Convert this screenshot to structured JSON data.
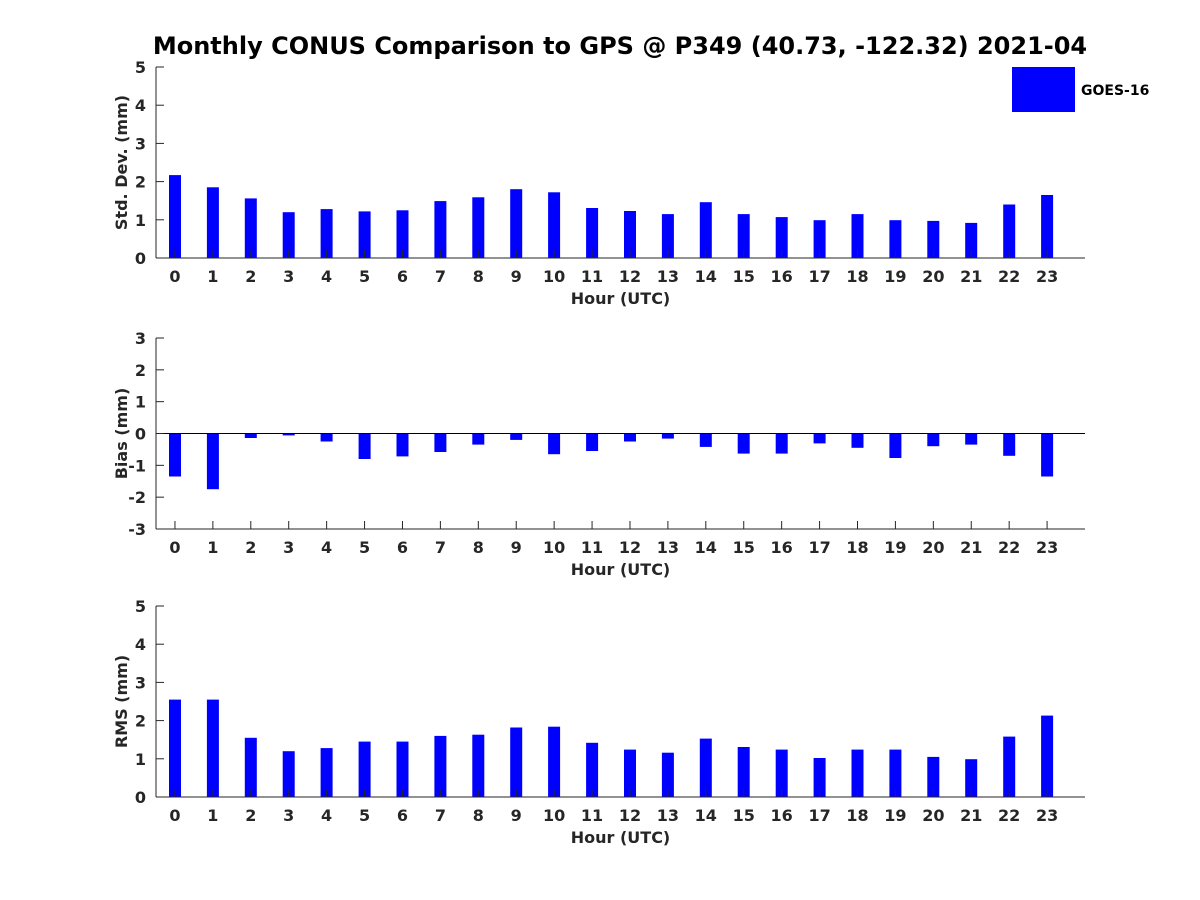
{
  "title": "Monthly CONUS Comparison to GPS @ P349 (40.73, -122.32) 2021-04",
  "legend": {
    "label": "GOES-16",
    "color": "#0000ff",
    "placement": "top-right"
  },
  "chart_data": [
    {
      "type": "bar",
      "xlabel": "Hour (UTC)",
      "ylabel": "Std. Dev. (mm)",
      "ylim": [
        0,
        5
      ],
      "yticks": [
        0,
        1,
        2,
        3,
        4,
        5
      ],
      "categories": [
        "0",
        "1",
        "2",
        "3",
        "4",
        "5",
        "6",
        "7",
        "8",
        "9",
        "10",
        "11",
        "12",
        "13",
        "14",
        "15",
        "16",
        "17",
        "18",
        "19",
        "20",
        "21",
        "22",
        "23"
      ],
      "series": [
        {
          "name": "GOES-16",
          "color": "#0000ff",
          "values": [
            2.17,
            1.85,
            1.56,
            1.2,
            1.28,
            1.22,
            1.25,
            1.49,
            1.59,
            1.8,
            1.72,
            1.31,
            1.23,
            1.15,
            1.46,
            1.15,
            1.07,
            0.99,
            1.15,
            0.99,
            0.97,
            0.92,
            1.4,
            1.65
          ]
        }
      ]
    },
    {
      "type": "bar",
      "xlabel": "Hour (UTC)",
      "ylabel": "Bias (mm)",
      "ylim": [
        -3,
        3
      ],
      "yticks": [
        -3,
        -2,
        -1,
        0,
        1,
        2,
        3
      ],
      "categories": [
        "0",
        "1",
        "2",
        "3",
        "4",
        "5",
        "6",
        "7",
        "8",
        "9",
        "10",
        "11",
        "12",
        "13",
        "14",
        "15",
        "16",
        "17",
        "18",
        "19",
        "20",
        "21",
        "22",
        "23"
      ],
      "series": [
        {
          "name": "GOES-16",
          "color": "#0000ff",
          "values": [
            -1.35,
            -1.75,
            -0.14,
            -0.06,
            -0.25,
            -0.8,
            -0.72,
            -0.58,
            -0.35,
            -0.2,
            -0.65,
            -0.55,
            -0.25,
            -0.16,
            -0.42,
            -0.63,
            -0.63,
            -0.31,
            -0.45,
            -0.77,
            -0.4,
            -0.35,
            -0.7,
            -1.35
          ]
        }
      ]
    },
    {
      "type": "bar",
      "xlabel": "Hour (UTC)",
      "ylabel": "RMS (mm)",
      "ylim": [
        0,
        5
      ],
      "yticks": [
        0,
        1,
        2,
        3,
        4,
        5
      ],
      "categories": [
        "0",
        "1",
        "2",
        "3",
        "4",
        "5",
        "6",
        "7",
        "8",
        "9",
        "10",
        "11",
        "12",
        "13",
        "14",
        "15",
        "16",
        "17",
        "18",
        "19",
        "20",
        "21",
        "22",
        "23"
      ],
      "series": [
        {
          "name": "GOES-16",
          "color": "#0000ff",
          "values": [
            2.55,
            2.55,
            1.55,
            1.2,
            1.28,
            1.45,
            1.45,
            1.6,
            1.63,
            1.82,
            1.84,
            1.42,
            1.24,
            1.16,
            1.53,
            1.31,
            1.24,
            1.02,
            1.24,
            1.24,
            1.05,
            0.99,
            1.58,
            2.13
          ]
        }
      ]
    }
  ]
}
